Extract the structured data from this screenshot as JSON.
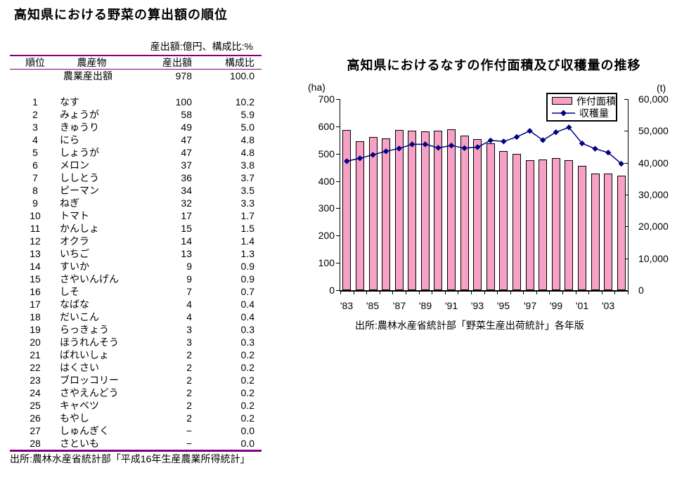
{
  "table": {
    "title": "高知県における野菜の算出額の順位",
    "unit_note": "産出額:億円、構成比:%",
    "columns": {
      "rank": "順位",
      "product": "農産物",
      "output": "産出額",
      "ratio": "構成比"
    },
    "total_row": {
      "name": "農業産出額",
      "output": "978",
      "ratio": "100.0"
    },
    "rows": [
      {
        "rank": "1",
        "name": "なす",
        "output": "100",
        "ratio": "10.2"
      },
      {
        "rank": "2",
        "name": "みょうが",
        "output": "58",
        "ratio": "5.9"
      },
      {
        "rank": "3",
        "name": "きゅうり",
        "output": "49",
        "ratio": "5.0"
      },
      {
        "rank": "4",
        "name": "にら",
        "output": "47",
        "ratio": "4.8"
      },
      {
        "rank": "5",
        "name": "しょうが",
        "output": "47",
        "ratio": "4.8"
      },
      {
        "rank": "6",
        "name": "メロン",
        "output": "37",
        "ratio": "3.8"
      },
      {
        "rank": "7",
        "name": "ししとう",
        "output": "36",
        "ratio": "3.7"
      },
      {
        "rank": "8",
        "name": "ピーマン",
        "output": "34",
        "ratio": "3.5"
      },
      {
        "rank": "9",
        "name": "ねぎ",
        "output": "32",
        "ratio": "3.3"
      },
      {
        "rank": "10",
        "name": "トマト",
        "output": "17",
        "ratio": "1.7"
      },
      {
        "rank": "11",
        "name": "かんしょ",
        "output": "15",
        "ratio": "1.5"
      },
      {
        "rank": "12",
        "name": "オクラ",
        "output": "14",
        "ratio": "1.4"
      },
      {
        "rank": "13",
        "name": "いちご",
        "output": "13",
        "ratio": "1.3"
      },
      {
        "rank": "14",
        "name": "すいか",
        "output": "9",
        "ratio": "0.9"
      },
      {
        "rank": "15",
        "name": "さやいんげん",
        "output": "9",
        "ratio": "0.9"
      },
      {
        "rank": "16",
        "name": "しそ",
        "output": "7",
        "ratio": "0.7"
      },
      {
        "rank": "17",
        "name": "なばな",
        "output": "4",
        "ratio": "0.4"
      },
      {
        "rank": "18",
        "name": "だいこん",
        "output": "4",
        "ratio": "0.4"
      },
      {
        "rank": "19",
        "name": "らっきょう",
        "output": "3",
        "ratio": "0.3"
      },
      {
        "rank": "20",
        "name": "ほうれんそう",
        "output": "3",
        "ratio": "0.3"
      },
      {
        "rank": "21",
        "name": "ばれいしょ",
        "output": "2",
        "ratio": "0.2"
      },
      {
        "rank": "22",
        "name": "はくさい",
        "output": "2",
        "ratio": "0.2"
      },
      {
        "rank": "23",
        "name": "ブロッコリー",
        "output": "2",
        "ratio": "0.2"
      },
      {
        "rank": "24",
        "name": "さやえんどう",
        "output": "2",
        "ratio": "0.2"
      },
      {
        "rank": "25",
        "name": "キャベツ",
        "output": "2",
        "ratio": "0.2"
      },
      {
        "rank": "26",
        "name": "もやし",
        "output": "2",
        "ratio": "0.2"
      },
      {
        "rank": "27",
        "name": "しゅんぎく",
        "output": "−",
        "ratio": "0.0"
      },
      {
        "rank": "28",
        "name": "さといも",
        "output": "−",
        "ratio": "0.0"
      }
    ],
    "source": "出所:農林水産省統計部「平成16年生産農業所得統計」",
    "rule_color": "#800080"
  },
  "chart": {
    "title": "高知県におけるなすの作付面積及び収穫量の推移",
    "left_axis_unit": "(ha)",
    "right_axis_unit": "(t)",
    "legend": {
      "area": "作付面積",
      "harvest": "収穫量"
    },
    "source": "出所:農林水産省統計部「野菜生産出荷統計」各年版",
    "colors": {
      "bar_fill": "#F7A1C6",
      "bar_border": "#000000",
      "line": "#000080"
    }
  },
  "chart_data": {
    "type": "bar",
    "title": "高知県におけるなすの作付面積及び収穫量の推移",
    "x": [
      1983,
      1984,
      1985,
      1986,
      1987,
      1988,
      1989,
      1990,
      1991,
      1992,
      1993,
      1994,
      1995,
      1996,
      1997,
      1998,
      1999,
      2000,
      2001,
      2002,
      2003,
      2004
    ],
    "x_tick_labels": [
      "'83",
      "'85",
      "'87",
      "'89",
      "'91",
      "'93",
      "'95",
      "'97",
      "'99",
      "'01",
      "'03"
    ],
    "series": [
      {
        "name": "作付面積",
        "type": "bar",
        "axis": "left",
        "unit": "ha",
        "values": [
          588,
          547,
          560,
          557,
          588,
          585,
          581,
          585,
          590,
          566,
          553,
          539,
          510,
          500,
          476,
          479,
          484,
          477,
          455,
          428,
          428,
          419
        ]
      },
      {
        "name": "収穫量",
        "type": "line",
        "axis": "right",
        "unit": "t",
        "values": [
          40500,
          41400,
          42500,
          43600,
          44500,
          45800,
          45800,
          44700,
          45400,
          44600,
          44900,
          47000,
          46700,
          48100,
          50000,
          47100,
          49600,
          51100,
          46100,
          44400,
          43200,
          39700
        ]
      }
    ],
    "left_axis": {
      "label": "(ha)",
      "min": 0,
      "max": 700,
      "step": 100
    },
    "right_axis": {
      "label": "(t)",
      "min": 0,
      "max": 60000,
      "step": 10000
    },
    "grid": false,
    "legend_position": "top-right"
  }
}
